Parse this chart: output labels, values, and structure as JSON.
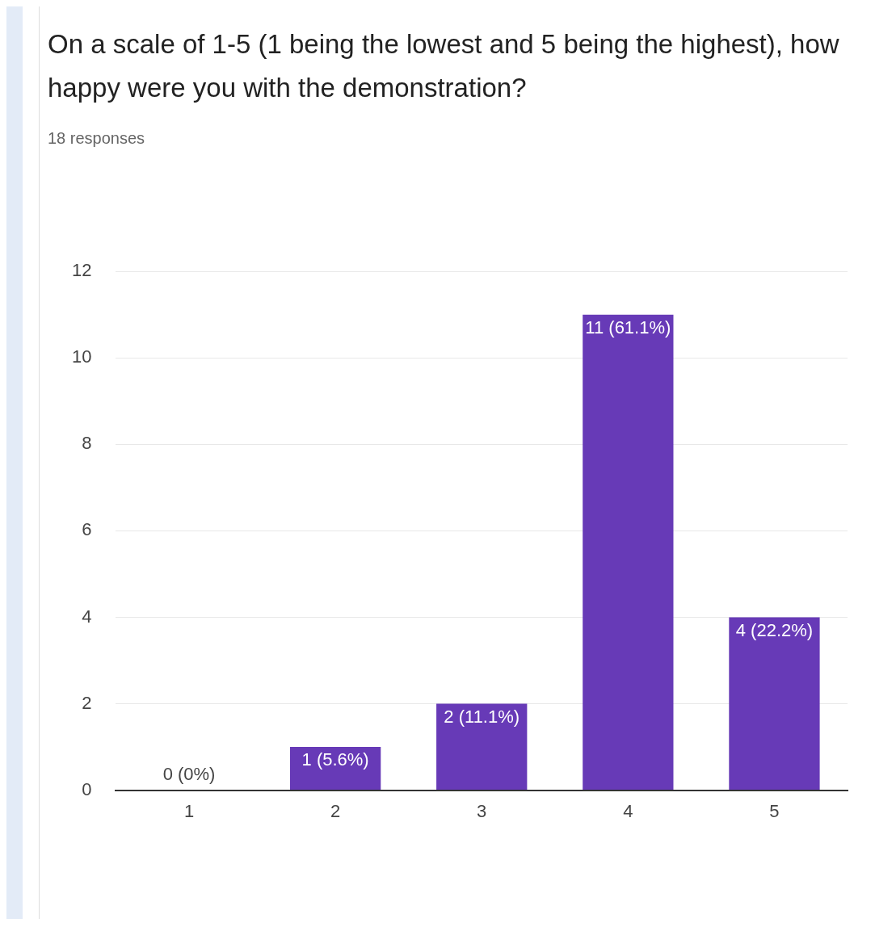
{
  "chart_data": {
    "type": "bar",
    "title": "On a scale of 1-5 (1 being the lowest and 5 being the highest), how happy were you with the demonstration?",
    "subtitle": "18 responses",
    "categories": [
      "1",
      "2",
      "3",
      "4",
      "5"
    ],
    "values": [
      0,
      1,
      2,
      11,
      4
    ],
    "color": "#673ab7",
    "value_labels": [
      "0 (0%)",
      "1 (5.6%)",
      "2 (11.1%)",
      "11 (61.1%)",
      "4 (22.2%)"
    ],
    "ylim": [
      0,
      12
    ],
    "yticks": [
      0,
      2,
      4,
      6,
      8,
      10,
      12
    ],
    "grid": "y"
  }
}
